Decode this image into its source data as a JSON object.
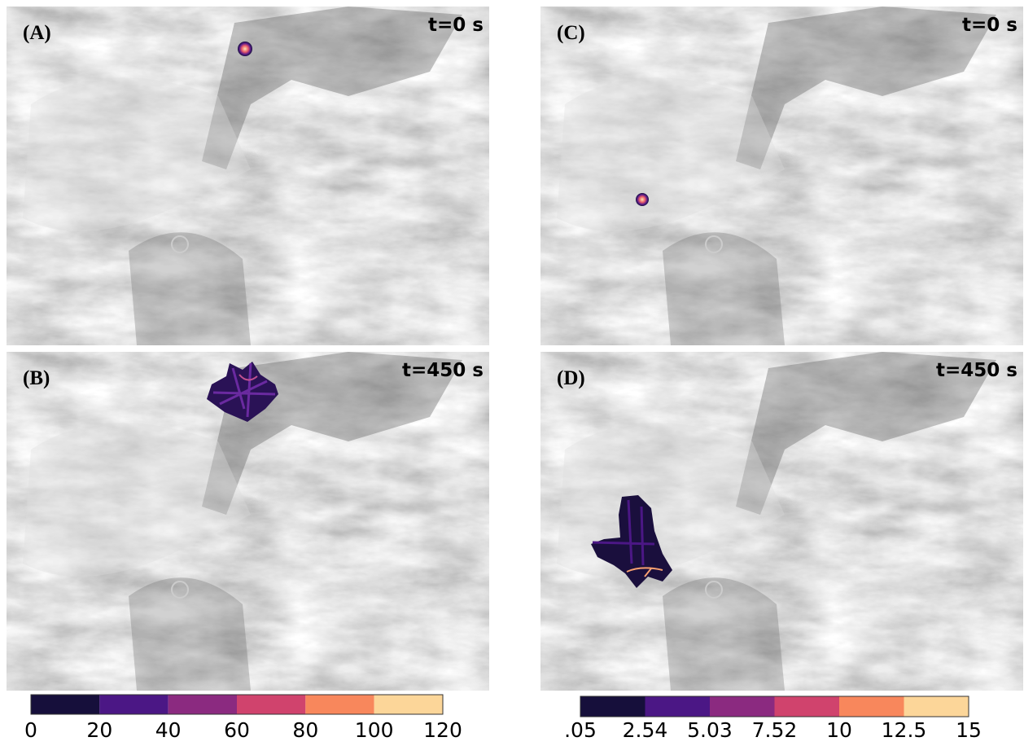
{
  "panels": [
    {
      "label": "(A)",
      "time": "t=0 s"
    },
    {
      "label": "(B)",
      "time": "t=450 s"
    },
    {
      "label": "(C)",
      "time": "t=0 s"
    },
    {
      "label": "(D)",
      "time": "t=450 s"
    }
  ],
  "colorbars": [
    {
      "ticks": [
        "0",
        "20",
        "40",
        "60",
        "80",
        "100",
        "120"
      ],
      "colors": [
        "#160f3b",
        "#4b1785",
        "#8b2a80",
        "#d0436d",
        "#f8875c",
        "#fcd699"
      ]
    },
    {
      "ticks": [
        ".05",
        "2.54",
        "5.03",
        "7.52",
        "10",
        "12.5",
        "15"
      ],
      "colors": [
        "#160f3b",
        "#4b1785",
        "#8b2a80",
        "#d0436d",
        "#f8875c",
        "#fcd699"
      ]
    }
  ]
}
